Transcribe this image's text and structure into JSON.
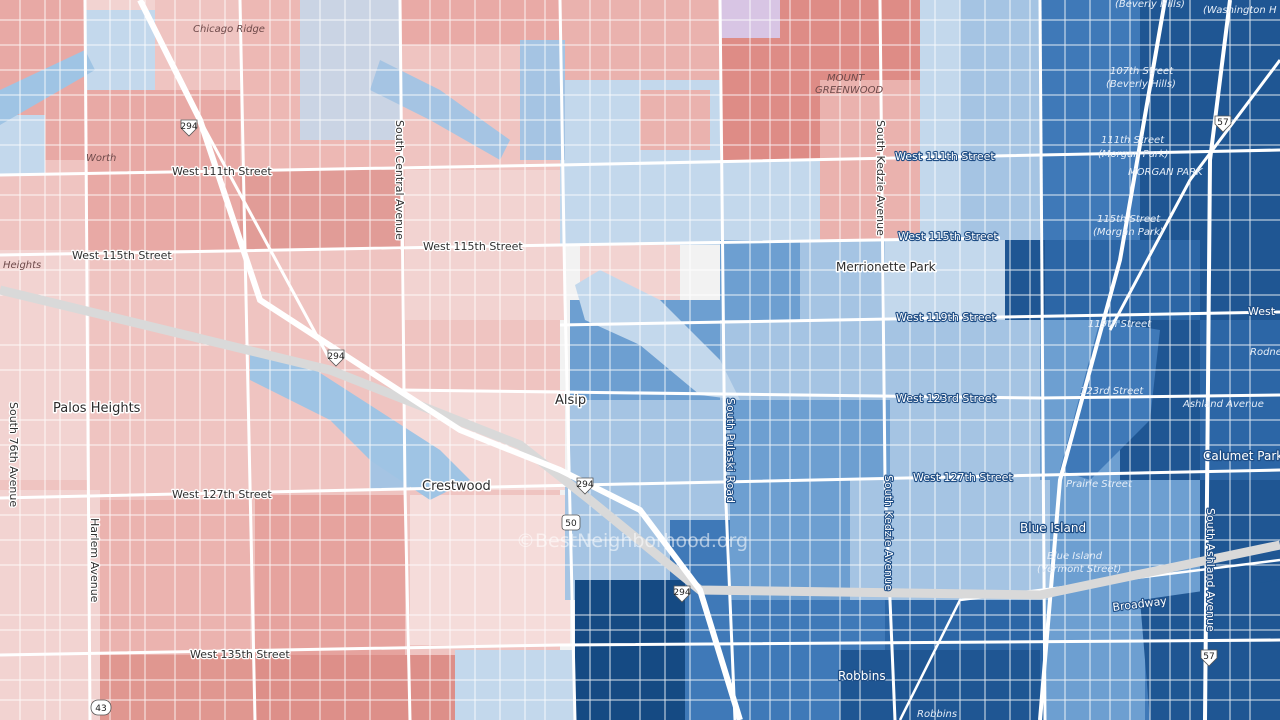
{
  "colors": {
    "red_dark": "#de8c86",
    "red": "#e8a9a5",
    "red_light": "#f2d3d1",
    "lavender": "#d8c5e4",
    "blue_pale": "#c3d8ec",
    "blue_light": "#a5c4e3",
    "blue": "#6d9fd1",
    "blue_mid": "#3f79b8",
    "blue_dark": "#1f5693",
    "blue_deep": "#154a83",
    "road": "#ffffff",
    "highway": "#d9d9d9",
    "water": "#9fc4e4"
  },
  "cities": {
    "alsip": "Alsip",
    "crestwood": "Crestwood",
    "palos_heights": "Palos Heights",
    "blue_island": "Blue Island",
    "merrionette_park": "Merrionette Park",
    "robbins": "Robbins",
    "calumet_park": "Calumet Park",
    "worth": "Worth",
    "chicago_ridge": "Chicago Ridge",
    "heights": "Heights",
    "mount": "MOUNT",
    "greenwood": "GREENWOOD",
    "morgan_park": "MORGAN PARK"
  },
  "streets": {
    "w111_left": "West 111th Street",
    "w111_right": "West 111th Street",
    "w115_left": "West 115th Street",
    "w115_mid": "West 115th Street",
    "w115_right": "West 115th Street",
    "w119": "West 119th Street",
    "w123": "West 123rd Street",
    "w127_left": "West 127th Street",
    "w127_right": "West 127th Street",
    "w135": "West 135th Street",
    "central": "South Central Avenue",
    "kedzie_n": "South Kedzie Avenue",
    "kedzie_s": "South Kedzie Avenue",
    "pulaski": "South Pulaski Road",
    "harlem": "Harlem Avenue",
    "s76": "South 76th Avenue",
    "ashland": "South Ashland Avenue",
    "broadway": "Broadway",
    "prairie": "Prairie Street",
    "ashland_ave": "Ashland Avenue",
    "st119": "119th Street",
    "st123": "123rd Street",
    "west": "West",
    "rodney": "Rodne",
    "beverly_hills": "(Beverly Hills)",
    "washington_heights": "(Washington H",
    "st107": "107th Street",
    "st107_sub": "(Beverly Hills)",
    "st111": "111th Street",
    "st111_sub": "(Morgan Park)",
    "st115": "115th Street",
    "st115_sub": "(Morgan Park)",
    "blue_island_station": "Blue Island",
    "blue_island_station_sub": "(Vermont Street)",
    "robbins_st": "Robbins"
  },
  "shields": {
    "i294_a": "294",
    "i294_b": "294",
    "i294_c": "294",
    "i294_d": "294",
    "i57_a": "57",
    "i57_b": "57",
    "us50": "50",
    "il43": "43"
  },
  "watermark": "©BestNeighborhood.org"
}
